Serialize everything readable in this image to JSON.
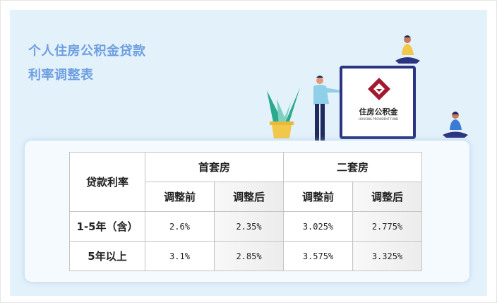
{
  "header": {
    "title_line1": "个人住房公积金贷款",
    "title_line2": "利率调整表"
  },
  "logo": {
    "text_cn": "住房公积金",
    "text_en": "HOUSING PROVIDENT FUND",
    "color": "#a3192f"
  },
  "table": {
    "corner": "贷款利率",
    "groups": [
      "首套房",
      "二套房"
    ],
    "subheaders": [
      "调整前",
      "调整后",
      "调整前",
      "调整后"
    ],
    "rows": [
      {
        "label": "1-5年（含）",
        "values": [
          "2.6%",
          "2.35%",
          "3.025%",
          "2.775%"
        ]
      },
      {
        "label": "5年以上",
        "values": [
          "3.1%",
          "2.85%",
          "3.575%",
          "3.325%"
        ]
      }
    ]
  }
}
